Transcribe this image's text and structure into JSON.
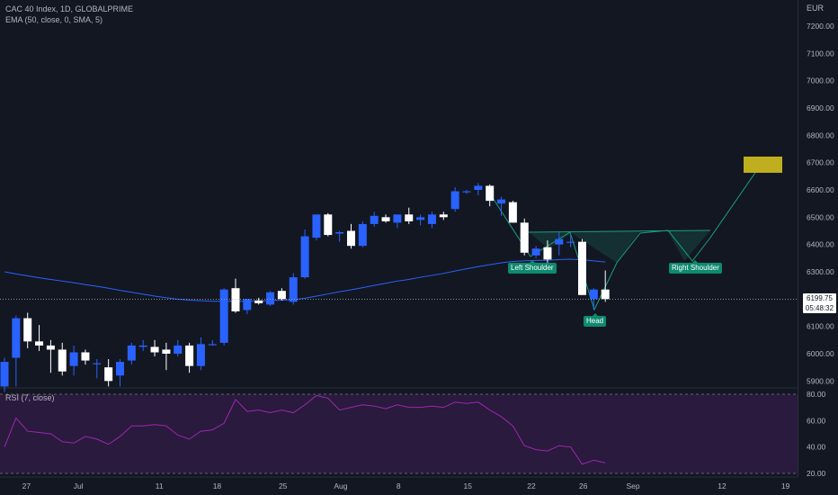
{
  "legend": {
    "symbol_line": "CAC 40 Index, 1D, GLOBALPRIME",
    "indicator_line": "EMA (50, close, 0, SMA, 5)",
    "rsi_line": "RSI (7, close)"
  },
  "currency_label": "EUR",
  "price_axis": {
    "ticks": [
      "7200.00",
      "7100.00",
      "7000.00",
      "6900.00",
      "6800.00",
      "6700.00",
      "6600.00",
      "6500.00",
      "6400.00",
      "6300.00",
      "6200.00",
      "6100.00",
      "6000.00",
      "5900.00"
    ]
  },
  "rsi_axis": {
    "ticks": [
      "80.00",
      "60.00",
      "40.00",
      "20.00"
    ]
  },
  "time_axis": {
    "labels": [
      "27",
      "Jul",
      "11",
      "18",
      "25",
      "Aug",
      "8",
      "15",
      "22",
      "26",
      "Sep",
      "12",
      "19"
    ]
  },
  "current_price": {
    "value": "6199.75",
    "countdown": "05:48:32"
  },
  "pattern_labels": {
    "left_shoulder": "Left Shoulder",
    "head": "Head",
    "right_shoulder": "Right Shoulder"
  },
  "colors": {
    "background": "#131722",
    "up": "#2962ff",
    "down": "#ffffff",
    "ema": "#2962ff",
    "rsi": "#9c27b0",
    "rsi_band": "#2a1a3d",
    "pattern_line": "#1a9e84",
    "pattern_fill": "#17463f",
    "target_box": "#bfae1e",
    "label_bg": "#0e8a6e"
  },
  "chart_data": {
    "type": "candlestick",
    "title": "CAC 40 Index, 1D, GLOBALPRIME",
    "y_unit": "EUR",
    "ylim": [
      5860,
      7270
    ],
    "x_tick_labels": [
      "27",
      "Jul",
      "11",
      "18",
      "25",
      "Aug",
      "8",
      "15",
      "22",
      "26",
      "Sep",
      "12",
      "19"
    ],
    "candles": [
      {
        "o": 5880,
        "h": 5985,
        "l": 5860,
        "c": 5970
      },
      {
        "o": 5985,
        "h": 6140,
        "l": 5880,
        "c": 6130
      },
      {
        "o": 6130,
        "h": 6150,
        "l": 6020,
        "c": 6045
      },
      {
        "o": 6045,
        "h": 6105,
        "l": 6010,
        "c": 6030
      },
      {
        "o": 6030,
        "h": 6050,
        "l": 5930,
        "c": 6015
      },
      {
        "o": 6015,
        "h": 6040,
        "l": 5920,
        "c": 5935
      },
      {
        "o": 5955,
        "h": 6030,
        "l": 5920,
        "c": 6005
      },
      {
        "o": 6005,
        "h": 6015,
        "l": 5960,
        "c": 5975
      },
      {
        "o": 5965,
        "h": 5980,
        "l": 5910,
        "c": 5965
      },
      {
        "o": 5950,
        "h": 5980,
        "l": 5880,
        "c": 5900
      },
      {
        "o": 5920,
        "h": 5980,
        "l": 5880,
        "c": 5970
      },
      {
        "o": 5975,
        "h": 6040,
        "l": 5960,
        "c": 6030
      },
      {
        "o": 6025,
        "h": 6050,
        "l": 6010,
        "c": 6030
      },
      {
        "o": 6025,
        "h": 6050,
        "l": 5990,
        "c": 6005
      },
      {
        "o": 6015,
        "h": 6040,
        "l": 5940,
        "c": 6000
      },
      {
        "o": 6000,
        "h": 6050,
        "l": 5990,
        "c": 6030
      },
      {
        "o": 6030,
        "h": 6040,
        "l": 5930,
        "c": 5955
      },
      {
        "o": 5955,
        "h": 6060,
        "l": 5940,
        "c": 6035
      },
      {
        "o": 6035,
        "h": 6050,
        "l": 6030,
        "c": 6035
      },
      {
        "o": 6040,
        "h": 6240,
        "l": 6030,
        "c": 6235
      },
      {
        "o": 6240,
        "h": 6275,
        "l": 6150,
        "c": 6155
      },
      {
        "o": 6160,
        "h": 6200,
        "l": 6145,
        "c": 6200
      },
      {
        "o": 6195,
        "h": 6205,
        "l": 6180,
        "c": 6185
      },
      {
        "o": 6180,
        "h": 6230,
        "l": 6175,
        "c": 6225
      },
      {
        "o": 6230,
        "h": 6240,
        "l": 6195,
        "c": 6200
      },
      {
        "o": 6190,
        "h": 6295,
        "l": 6180,
        "c": 6280
      },
      {
        "o": 6280,
        "h": 6455,
        "l": 6275,
        "c": 6430
      },
      {
        "o": 6425,
        "h": 6500,
        "l": 6415,
        "c": 6510
      },
      {
        "o": 6510,
        "h": 6515,
        "l": 6430,
        "c": 6435
      },
      {
        "o": 6440,
        "h": 6450,
        "l": 6410,
        "c": 6445
      },
      {
        "o": 6450,
        "h": 6475,
        "l": 6385,
        "c": 6395
      },
      {
        "o": 6395,
        "h": 6485,
        "l": 6390,
        "c": 6475
      },
      {
        "o": 6475,
        "h": 6520,
        "l": 6465,
        "c": 6505
      },
      {
        "o": 6500,
        "h": 6510,
        "l": 6480,
        "c": 6485
      },
      {
        "o": 6480,
        "h": 6500,
        "l": 6460,
        "c": 6510
      },
      {
        "o": 6510,
        "h": 6535,
        "l": 6475,
        "c": 6485
      },
      {
        "o": 6490,
        "h": 6510,
        "l": 6470,
        "c": 6500
      },
      {
        "o": 6475,
        "h": 6520,
        "l": 6460,
        "c": 6510
      },
      {
        "o": 6510,
        "h": 6520,
        "l": 6490,
        "c": 6500
      },
      {
        "o": 6530,
        "h": 6610,
        "l": 6520,
        "c": 6595
      },
      {
        "o": 6595,
        "h": 6600,
        "l": 6585,
        "c": 6595
      },
      {
        "o": 6600,
        "h": 6625,
        "l": 6580,
        "c": 6615
      },
      {
        "o": 6615,
        "h": 6620,
        "l": 6540,
        "c": 6560
      },
      {
        "o": 6550,
        "h": 6575,
        "l": 6505,
        "c": 6565
      },
      {
        "o": 6555,
        "h": 6560,
        "l": 6480,
        "c": 6480
      },
      {
        "o": 6480,
        "h": 6495,
        "l": 6360,
        "c": 6370
      },
      {
        "o": 6360,
        "h": 6395,
        "l": 6350,
        "c": 6385
      },
      {
        "o": 6390,
        "h": 6415,
        "l": 6310,
        "c": 6345
      },
      {
        "o": 6400,
        "h": 6445,
        "l": 6360,
        "c": 6420
      },
      {
        "o": 6410,
        "h": 6435,
        "l": 6390,
        "c": 6410
      },
      {
        "o": 6410,
        "h": 6420,
        "l": 6215,
        "c": 6215
      },
      {
        "o": 6200,
        "h": 6240,
        "l": 6160,
        "c": 6235
      },
      {
        "o": 6235,
        "h": 6305,
        "l": 6190,
        "c": 6200
      }
    ],
    "ema": {
      "name": "EMA (50, close, 0, SMA, 5)",
      "values": [
        6300,
        6292,
        6285,
        6278,
        6272,
        6266,
        6260,
        6253,
        6247,
        6240,
        6232,
        6225,
        6218,
        6211,
        6205,
        6200,
        6196,
        6194,
        6192,
        6192,
        6192,
        6192,
        6193,
        6194,
        6196,
        6198,
        6203,
        6211,
        6219,
        6227,
        6234,
        6242,
        6250,
        6258,
        6266,
        6272,
        6280,
        6287,
        6294,
        6303,
        6311,
        6319,
        6326,
        6333,
        6338,
        6340,
        6342,
        6342,
        6345,
        6346,
        6344,
        6340,
        6336
      ]
    },
    "rsi": {
      "name": "RSI (7, close)",
      "ylim": [
        20,
        80
      ],
      "values": [
        40,
        62,
        52,
        51,
        50,
        44,
        43,
        48,
        46,
        42,
        48,
        56,
        56,
        57,
        56,
        49,
        46,
        52,
        53,
        58,
        76,
        67,
        68,
        66,
        68,
        66,
        72,
        79,
        77,
        68,
        70,
        72,
        71,
        69,
        72,
        70,
        70,
        71,
        70,
        74,
        73,
        74,
        68,
        63,
        56,
        41,
        38,
        37,
        41,
        40,
        27,
        30,
        28
      ]
    },
    "current_price": 6199.75,
    "head_and_shoulders": {
      "neckline_price": 6450,
      "labels": [
        "Left Shoulder",
        "Head",
        "Right Shoulder"
      ],
      "target_box_price": [
        6670,
        6730
      ]
    }
  }
}
